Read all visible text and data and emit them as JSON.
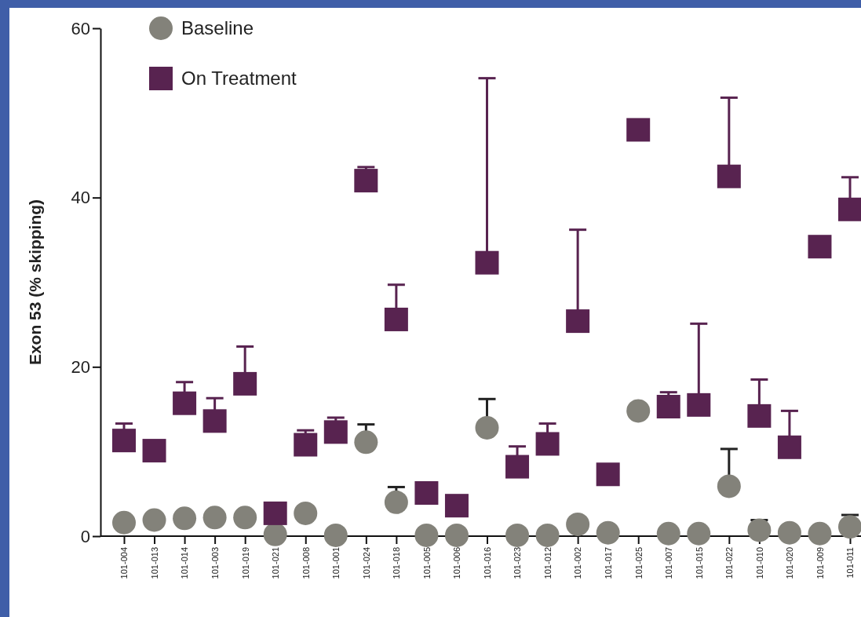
{
  "chart_data": {
    "type": "scatter",
    "ylabel": "Exon 53 (% skipping)",
    "categories": [
      "101-004",
      "101-013",
      "101-014",
      "101-003",
      "101-019",
      "101-021",
      "101-008",
      "101-001",
      "101-024",
      "101-018",
      "101-005",
      "101-006",
      "101-016",
      "101-023",
      "101-012",
      "101-002",
      "101-017",
      "101-025",
      "101-007",
      "101-015",
      "101-022",
      "101-010",
      "101-020",
      "101-009",
      "101-011"
    ],
    "ylim": [
      0,
      60
    ],
    "yticks": [
      0,
      20,
      40,
      60
    ],
    "grid": false,
    "legend": "top left",
    "series": [
      {
        "name": "Baseline",
        "color": "#83827a",
        "marker": "circle",
        "values": [
          1.6,
          1.9,
          2.1,
          2.2,
          2.2,
          0.2,
          2.7,
          0.1,
          11.1,
          4.0,
          0.1,
          0.1,
          12.8,
          0.1,
          0.1,
          1.4,
          0.4,
          14.8,
          0.3,
          0.3,
          5.9,
          0.7,
          0.4,
          0.3,
          1.1
        ],
        "errors": [
          null,
          null,
          null,
          null,
          null,
          null,
          null,
          null,
          [
            11.1,
            13.2
          ],
          [
            4.0,
            5.8
          ],
          null,
          null,
          [
            12.8,
            16.2
          ],
          null,
          null,
          null,
          null,
          null,
          null,
          null,
          [
            5.9,
            10.3
          ],
          [
            0.7,
            1.9
          ],
          null,
          null,
          [
            1.1,
            2.5
          ]
        ]
      },
      {
        "name": "On Treatment",
        "color": "#582350",
        "marker": "square",
        "values": [
          11.3,
          10.1,
          15.7,
          13.6,
          18.0,
          2.7,
          10.8,
          12.3,
          42.0,
          25.6,
          5.1,
          3.6,
          32.3,
          8.2,
          10.9,
          25.4,
          7.3,
          48.0,
          15.3,
          15.5,
          42.5,
          14.2,
          10.5,
          34.2,
          38.6
        ],
        "errors": [
          [
            11.3,
            13.3
          ],
          null,
          [
            15.7,
            18.2
          ],
          [
            13.6,
            16.3
          ],
          [
            18.0,
            22.4
          ],
          null,
          [
            10.8,
            12.5
          ],
          [
            12.3,
            14.0
          ],
          [
            42.0,
            43.6
          ],
          [
            25.6,
            29.7
          ],
          null,
          null,
          [
            32.3,
            54.1
          ],
          [
            8.2,
            10.6
          ],
          [
            10.9,
            13.3
          ],
          [
            25.4,
            36.2
          ],
          null,
          null,
          [
            15.3,
            17.0
          ],
          [
            15.5,
            25.1
          ],
          [
            42.5,
            51.8
          ],
          [
            14.2,
            18.5
          ],
          [
            10.5,
            14.8
          ],
          null,
          [
            38.6,
            42.4
          ]
        ]
      }
    ]
  }
}
